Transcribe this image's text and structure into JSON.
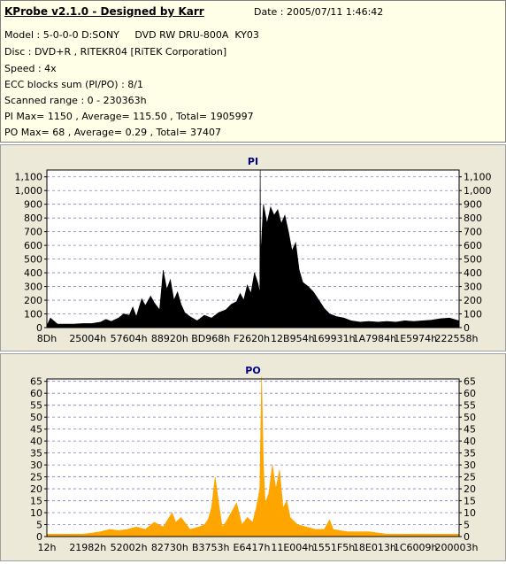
{
  "header": {
    "title": "KProbe v2.1.0 - Designed by Karr",
    "date": "Date : 2005/07/11 1:46:42",
    "lines": [
      "Model : 5-0-0-0 D:SONY     DVD RW DRU-800A  KY03",
      "Disc : DVD+R , RITEKR04 [RiTEK Corporation]",
      "Speed : 4x",
      "ECC blocks sum (PI/PO) : 8/1",
      "Scanned range : 0 - 230363h",
      "PI Max= 1150 , Average= 115.50 , Total= 1905997",
      "PO Max= 68 , Average= 0.29 , Total= 37407"
    ]
  },
  "colors": {
    "pi": "#000000",
    "po": "#ffa500",
    "plot_bg": "#ffffff",
    "grid": "#8080c0",
    "title": "#000080"
  },
  "chart_data": [
    {
      "type": "area",
      "title": "PI",
      "ylim": [
        0,
        1150
      ],
      "yticks": [
        0,
        100,
        200,
        300,
        400,
        500,
        600,
        700,
        800,
        900,
        1000,
        1100
      ],
      "ytick_labels": [
        "0",
        "100",
        "200",
        "300",
        "400",
        "500",
        "600",
        "700",
        "800",
        "900",
        "1,000",
        "1,100"
      ],
      "xtick_labels": [
        "8Dh",
        "25004h",
        "57604h",
        "88920h",
        "BD968h",
        "F2620h",
        "12B954h",
        "169931h",
        "1A7984h",
        "1E5974h",
        "222558h"
      ],
      "x_domain": [
        0,
        230363
      ],
      "points": [
        [
          0,
          15
        ],
        [
          2000,
          70
        ],
        [
          6000,
          25
        ],
        [
          10000,
          25
        ],
        [
          15000,
          25
        ],
        [
          20000,
          30
        ],
        [
          25000,
          30
        ],
        [
          30000,
          40
        ],
        [
          33000,
          60
        ],
        [
          36000,
          45
        ],
        [
          40000,
          70
        ],
        [
          43000,
          100
        ],
        [
          46000,
          90
        ],
        [
          48000,
          150
        ],
        [
          50000,
          80
        ],
        [
          53000,
          210
        ],
        [
          55000,
          160
        ],
        [
          58000,
          230
        ],
        [
          60000,
          180
        ],
        [
          63000,
          130
        ],
        [
          65000,
          420
        ],
        [
          67000,
          280
        ],
        [
          69000,
          350
        ],
        [
          71000,
          200
        ],
        [
          73000,
          260
        ],
        [
          75000,
          170
        ],
        [
          77000,
          110
        ],
        [
          80000,
          80
        ],
        [
          84000,
          50
        ],
        [
          88000,
          90
        ],
        [
          92000,
          70
        ],
        [
          96000,
          110
        ],
        [
          100000,
          130
        ],
        [
          103000,
          170
        ],
        [
          106000,
          190
        ],
        [
          108000,
          250
        ],
        [
          110000,
          200
        ],
        [
          112000,
          310
        ],
        [
          114000,
          250
        ],
        [
          116000,
          400
        ],
        [
          118000,
          320
        ],
        [
          119000,
          250
        ],
        [
          119200,
          1150
        ],
        [
          119500,
          520
        ],
        [
          121000,
          900
        ],
        [
          123000,
          760
        ],
        [
          125000,
          880
        ],
        [
          127000,
          820
        ],
        [
          129000,
          860
        ],
        [
          131000,
          760
        ],
        [
          133000,
          820
        ],
        [
          135000,
          700
        ],
        [
          137000,
          560
        ],
        [
          139000,
          620
        ],
        [
          141000,
          420
        ],
        [
          143000,
          330
        ],
        [
          146000,
          300
        ],
        [
          149000,
          260
        ],
        [
          152000,
          200
        ],
        [
          155000,
          140
        ],
        [
          158000,
          100
        ],
        [
          162000,
          80
        ],
        [
          166000,
          70
        ],
        [
          170000,
          50
        ],
        [
          175000,
          40
        ],
        [
          180000,
          45
        ],
        [
          185000,
          40
        ],
        [
          190000,
          45
        ],
        [
          195000,
          40
        ],
        [
          200000,
          50
        ],
        [
          205000,
          45
        ],
        [
          210000,
          50
        ],
        [
          215000,
          55
        ],
        [
          220000,
          65
        ],
        [
          225000,
          70
        ],
        [
          230363,
          50
        ]
      ]
    },
    {
      "type": "area",
      "title": "PO",
      "ylim": [
        0,
        66
      ],
      "yticks": [
        0,
        5,
        10,
        15,
        20,
        25,
        30,
        35,
        40,
        45,
        50,
        55,
        60,
        65
      ],
      "ytick_labels": [
        "0",
        "5",
        "10",
        "15",
        "20",
        "25",
        "30",
        "35",
        "40",
        "45",
        "50",
        "55",
        "60",
        "65"
      ],
      "xtick_labels": [
        "12h",
        "21982h",
        "52002h",
        "82730h",
        "B3753h",
        "E6417h",
        "11E004h",
        "1551F5h",
        "18E013h",
        "1C6009h",
        "200003h"
      ],
      "x_domain": [
        0,
        230363
      ],
      "points": [
        [
          0,
          1
        ],
        [
          10000,
          1
        ],
        [
          20000,
          1
        ],
        [
          25000,
          1.5
        ],
        [
          30000,
          2
        ],
        [
          35000,
          3
        ],
        [
          40000,
          2.5
        ],
        [
          45000,
          3
        ],
        [
          50000,
          4
        ],
        [
          55000,
          3
        ],
        [
          60000,
          6
        ],
        [
          65000,
          4
        ],
        [
          70000,
          10
        ],
        [
          72000,
          6
        ],
        [
          75000,
          8
        ],
        [
          80000,
          3
        ],
        [
          85000,
          4
        ],
        [
          88000,
          5
        ],
        [
          90000,
          7
        ],
        [
          92000,
          12
        ],
        [
          94000,
          25
        ],
        [
          96000,
          14
        ],
        [
          98000,
          4
        ],
        [
          100000,
          6
        ],
        [
          103000,
          10
        ],
        [
          106000,
          14
        ],
        [
          109000,
          5
        ],
        [
          112000,
          8
        ],
        [
          115000,
          6
        ],
        [
          117000,
          12
        ],
        [
          119000,
          20
        ],
        [
          120000,
          67
        ],
        [
          121000,
          30
        ],
        [
          122000,
          14
        ],
        [
          124000,
          18
        ],
        [
          126000,
          30
        ],
        [
          128000,
          20
        ],
        [
          130000,
          28
        ],
        [
          132000,
          12
        ],
        [
          134000,
          15
        ],
        [
          136000,
          8
        ],
        [
          140000,
          5
        ],
        [
          145000,
          4
        ],
        [
          150000,
          3
        ],
        [
          155000,
          3
        ],
        [
          158000,
          7
        ],
        [
          160000,
          3
        ],
        [
          168000,
          2
        ],
        [
          175000,
          2
        ],
        [
          180000,
          2
        ],
        [
          190000,
          1
        ],
        [
          200000,
          1
        ],
        [
          210000,
          1
        ],
        [
          220000,
          1
        ],
        [
          230363,
          1
        ]
      ]
    }
  ]
}
